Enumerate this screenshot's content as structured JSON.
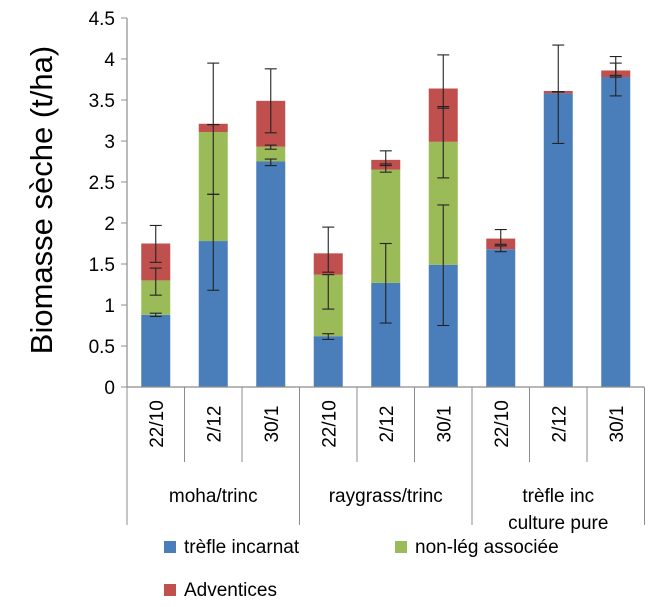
{
  "chart_data": {
    "type": "bar",
    "stacked": true,
    "title": "",
    "ylabel": "Biomasse sèche (t/ha)",
    "ylim": [
      0,
      4.5
    ],
    "yticks": [
      "0",
      "0.5",
      "1",
      "1.5",
      "2",
      "2.5",
      "3",
      "3.5",
      "4",
      "4.5"
    ],
    "grid": false,
    "legend_position": "bottom",
    "categories": [
      "22/10",
      "2/12",
      "30/1",
      "22/10",
      "2/12",
      "30/1",
      "22/10",
      "2/12",
      "30/1"
    ],
    "groups": [
      {
        "lines": [
          "moha/trinc"
        ],
        "span": 3
      },
      {
        "lines": [
          "raygrass/trinc"
        ],
        "span": 3
      },
      {
        "lines": [
          "trèfle inc",
          "culture pure"
        ],
        "span": 3
      }
    ],
    "series": [
      {
        "name": "trèfle incarnat",
        "color": "#4a7ebb",
        "values": [
          0.88,
          1.78,
          2.75,
          0.62,
          1.27,
          1.49,
          1.68,
          3.58,
          3.78
        ]
      },
      {
        "name": "non-lég associée",
        "color": "#9bbb59",
        "values": [
          0.42,
          1.33,
          0.18,
          0.75,
          1.38,
          1.5,
          0,
          0,
          0
        ]
      },
      {
        "name": "Adventices",
        "color": "#c0504d",
        "values": [
          0.45,
          0.1,
          0.56,
          0.26,
          0.12,
          0.65,
          0.13,
          0.03,
          0.08
        ]
      }
    ],
    "error_bars": [
      [
        [
          0.86,
          0.9
        ],
        [
          1.12,
          1.45
        ],
        [
          1.52,
          1.97
        ]
      ],
      [
        [
          1.18,
          2.35
        ],
        [
          2.35,
          3.95
        ],
        [
          3.2,
          3.2
        ]
      ],
      [
        [
          2.7,
          2.78
        ],
        [
          2.9,
          2.95
        ],
        [
          3.1,
          3.88
        ]
      ],
      [
        [
          0.58,
          0.65
        ],
        [
          0.95,
          1.37
        ],
        [
          1.4,
          1.95
        ]
      ],
      [
        [
          0.78,
          1.75
        ],
        [
          2.62,
          2.72
        ],
        [
          2.7,
          2.88
        ]
      ],
      [
        [
          0.75,
          2.22
        ],
        [
          2.55,
          3.42
        ],
        [
          3.4,
          4.05
        ]
      ],
      [
        [
          1.65,
          1.72
        ],
        [
          1.72,
          1.72
        ],
        [
          1.74,
          1.92
        ]
      ],
      [
        [
          2.97,
          4.17
        ],
        [
          3.6,
          3.6
        ],
        [
          3.6,
          3.6
        ]
      ],
      [
        [
          3.55,
          3.95
        ],
        [
          3.78,
          3.78
        ],
        [
          3.8,
          4.03
        ]
      ]
    ]
  }
}
